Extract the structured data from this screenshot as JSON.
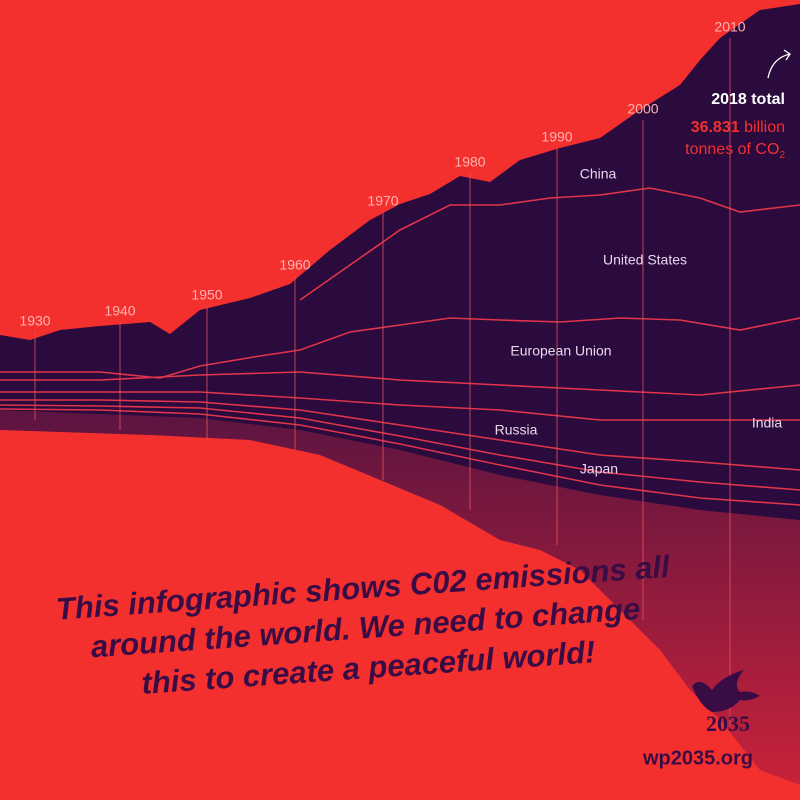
{
  "years": [
    "1930",
    "1940",
    "1950",
    "1960",
    "1970",
    "1980",
    "1990",
    "2000",
    "2010"
  ],
  "countries": [
    "China",
    "United States",
    "European Union",
    "Russia",
    "Japan",
    "India"
  ],
  "annotation": {
    "total_label": "2018 total",
    "value": "36.831",
    "unit_line1": "billion",
    "unit_line2": "tonnes of CO",
    "subscript": "2"
  },
  "slogan": [
    "This infographic shows C02 emissions all",
    "around the world. We need to change",
    "this to create a peaceful world!"
  ],
  "logo": {
    "year": "2035",
    "url": "wp2035.org"
  }
}
